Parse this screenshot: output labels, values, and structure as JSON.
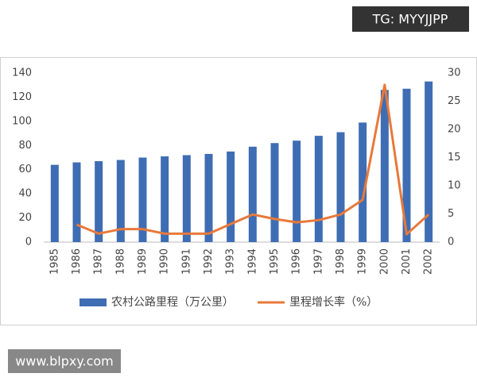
{
  "chart_data": {
    "type": "bar-line",
    "categories": [
      "1985",
      "1986",
      "1987",
      "1988",
      "1989",
      "1990",
      "1991",
      "1992",
      "1993",
      "1994",
      "1995",
      "1996",
      "1997",
      "1998",
      "1999",
      "2000",
      "2001",
      "2002"
    ],
    "series": [
      {
        "name": "农村公路里程（万公里）",
        "type": "bar",
        "color": "#3f6db3",
        "values": [
          64,
          66,
          67,
          68,
          70,
          71,
          72,
          73,
          75,
          79,
          82,
          84,
          88,
          91,
          99,
          126,
          127,
          133
        ]
      },
      {
        "name": "里程增长率（%）",
        "type": "line",
        "axis": "y2",
        "color": "#e8793a",
        "values": [
          null,
          3.1,
          1.5,
          2.3,
          2.3,
          1.5,
          1.5,
          1.5,
          3.2,
          4.9,
          4.1,
          3.5,
          3.9,
          4.9,
          7.5,
          27.9,
          1.4,
          4.9
        ]
      }
    ],
    "ylim": [
      0,
      140
    ],
    "yticks": [
      0,
      20,
      40,
      60,
      80,
      100,
      120,
      140
    ],
    "y2lim": [
      0,
      30
    ],
    "y2ticks": [
      0,
      5,
      10,
      15,
      20,
      25,
      30
    ],
    "grid": false,
    "legend": "bottom"
  },
  "watermarks": {
    "top": "TG: MYYJJPP",
    "bottom": "www.blpxy.com"
  }
}
